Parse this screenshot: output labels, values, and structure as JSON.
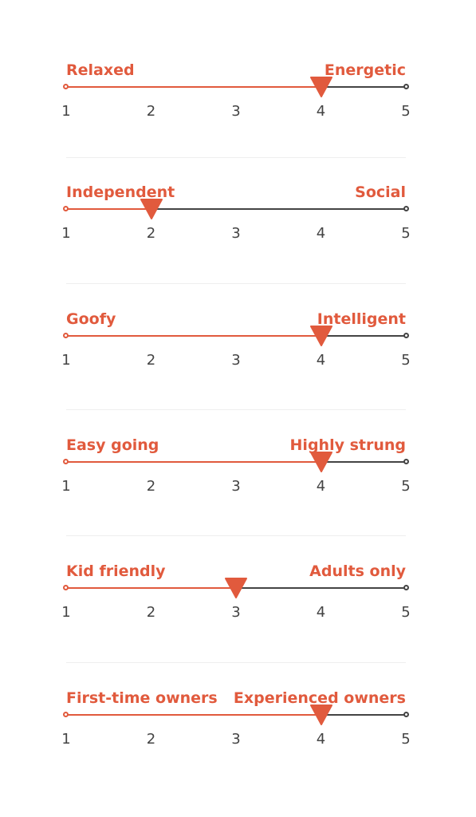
{
  "theme": {
    "accent": "#e15a3d",
    "track": "#444444",
    "tick_text": "#444444",
    "divider": "#eeeeee"
  },
  "scales": [
    {
      "left": "Relaxed",
      "right": "Energetic",
      "value": 4,
      "ticks": [
        "1",
        "2",
        "3",
        "4",
        "5"
      ]
    },
    {
      "left": "Independent",
      "right": "Social",
      "value": 2,
      "ticks": [
        "1",
        "2",
        "3",
        "4",
        "5"
      ]
    },
    {
      "left": "Goofy",
      "right": "Intelligent",
      "value": 4,
      "ticks": [
        "1",
        "2",
        "3",
        "4",
        "5"
      ]
    },
    {
      "left": "Easy going",
      "right": "Highly strung",
      "value": 4,
      "ticks": [
        "1",
        "2",
        "3",
        "4",
        "5"
      ]
    },
    {
      "left": "Kid friendly",
      "right": "Adults only",
      "value": 3,
      "ticks": [
        "1",
        "2",
        "3",
        "4",
        "5"
      ]
    },
    {
      "left": "First-time owners",
      "right": "Experienced owners",
      "value": 4,
      "ticks": [
        "1",
        "2",
        "3",
        "4",
        "5"
      ]
    }
  ]
}
